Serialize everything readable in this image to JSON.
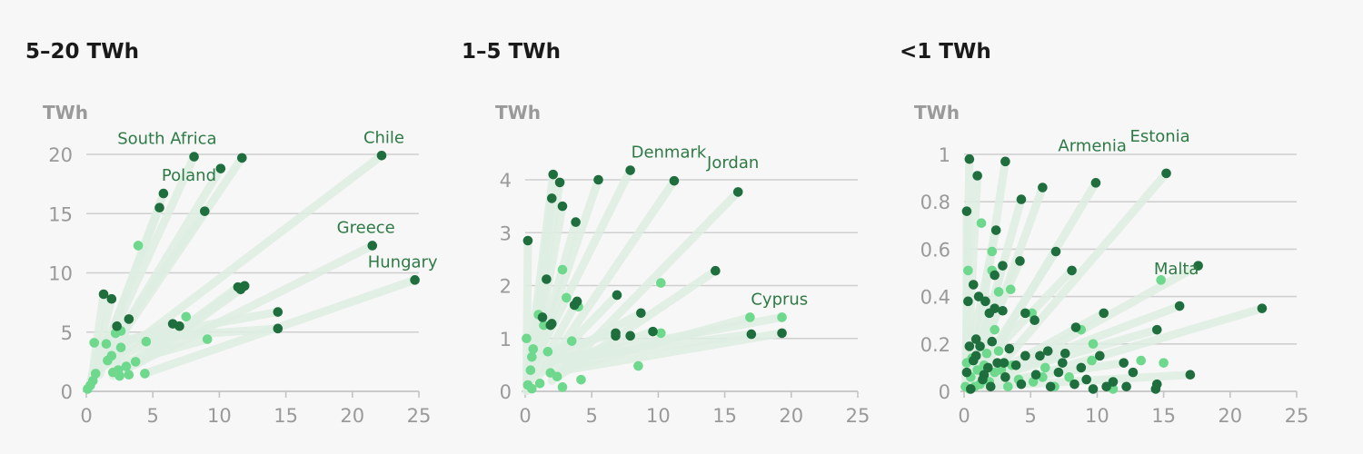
{
  "colors": {
    "grid": "#cfcfcf",
    "axis": "#c4c4c4",
    "link": "#dfeee3",
    "dot_dark": "#1f6e3d",
    "dot_light": "#6ed88c",
    "label": "#2e7a45"
  },
  "chart_data": [
    {
      "type": "scatter",
      "title": "5–20 TWh",
      "ylabel": "TWh",
      "xlabel": "",
      "xlim": [
        0,
        25
      ],
      "ylim": [
        0,
        20
      ],
      "xticks": [
        0,
        5,
        10,
        15,
        20,
        25
      ],
      "yticks": [
        0,
        5,
        10,
        15,
        20
      ],
      "grid": true,
      "links": [
        [
          0.1,
          0.2,
          8.1,
          19.8
        ],
        [
          0.3,
          0.8,
          11.7,
          19.7
        ],
        [
          0.6,
          1.5,
          22.2,
          19.9
        ],
        [
          0.2,
          0.5,
          10.1,
          18.8
        ],
        [
          1.0,
          2.2,
          5.8,
          16.7
        ],
        [
          0.8,
          1.8,
          5.5,
          15.5
        ],
        [
          1.2,
          2.8,
          8.9,
          15.2
        ],
        [
          2.3,
          1.5,
          21.5,
          12.3
        ],
        [
          4.4,
          1.5,
          24.7,
          9.4
        ],
        [
          2.5,
          1.8,
          11.9,
          8.9
        ],
        [
          3.2,
          2.0,
          11.4,
          8.8
        ],
        [
          3.8,
          2.3,
          11.6,
          8.6
        ],
        [
          1.2,
          4.0,
          14.4,
          6.7
        ],
        [
          0.5,
          4.2,
          14.4,
          5.3
        ],
        [
          1.5,
          3.5,
          6.5,
          5.7
        ],
        [
          2.0,
          1.3,
          3.2,
          6.1
        ],
        [
          0.4,
          1.0,
          1.3,
          8.2
        ],
        [
          0.3,
          0.8,
          1.9,
          7.8
        ],
        [
          1.0,
          1.4,
          2.3,
          5.5
        ],
        [
          1.5,
          2.3,
          7.0,
          5.5
        ],
        [
          2.4,
          2.3,
          9.1,
          4.4
        ]
      ],
      "dark_points": [
        [
          8.1,
          19.8
        ],
        [
          11.7,
          19.7
        ],
        [
          22.2,
          19.9
        ],
        [
          10.1,
          18.8
        ],
        [
          5.8,
          16.7
        ],
        [
          5.5,
          15.5
        ],
        [
          8.9,
          15.2
        ],
        [
          21.5,
          12.3
        ],
        [
          24.7,
          9.4
        ],
        [
          11.9,
          8.9
        ],
        [
          11.4,
          8.8
        ],
        [
          11.6,
          8.6
        ],
        [
          1.3,
          8.2
        ],
        [
          1.9,
          7.8
        ],
        [
          14.4,
          6.7
        ],
        [
          3.2,
          6.1
        ],
        [
          6.5,
          5.7
        ],
        [
          7.0,
          5.5
        ],
        [
          2.3,
          5.5
        ],
        [
          14.4,
          5.3
        ]
      ],
      "light_points": [
        [
          3.9,
          12.3
        ],
        [
          7.5,
          6.3
        ],
        [
          9.1,
          4.4
        ],
        [
          0.6,
          4.1
        ],
        [
          1.5,
          4.0
        ],
        [
          2.2,
          4.9
        ],
        [
          4.5,
          4.2
        ],
        [
          2.6,
          3.7
        ],
        [
          1.9,
          3.0
        ],
        [
          3.7,
          2.5
        ],
        [
          3.0,
          2.1
        ],
        [
          2.4,
          1.8
        ],
        [
          3.2,
          1.4
        ],
        [
          4.4,
          1.5
        ],
        [
          2.5,
          1.3
        ],
        [
          0.7,
          1.5
        ],
        [
          0.5,
          0.9
        ],
        [
          0.3,
          0.5
        ],
        [
          0.1,
          0.2
        ],
        [
          2.0,
          1.6
        ],
        [
          2.6,
          5.1
        ],
        [
          1.6,
          2.6
        ]
      ],
      "labels": [
        {
          "text": "South Africa",
          "x": 8.1,
          "y": 19.8,
          "anchor": "end"
        },
        {
          "text": "Poland",
          "x": 5.8,
          "y": 16.7,
          "anchor": "start"
        },
        {
          "text": "Chile",
          "x": 22.2,
          "y": 19.9,
          "anchor": "end"
        },
        {
          "text": "Greece",
          "x": 21.5,
          "y": 12.3,
          "anchor": "end"
        },
        {
          "text": "Hungary",
          "x": 24.7,
          "y": 9.4,
          "anchor": "end"
        }
      ]
    },
    {
      "type": "scatter",
      "title": "1–5 TWh",
      "ylabel": "TWh",
      "xlabel": "",
      "xlim": [
        0,
        25
      ],
      "ylim": [
        0,
        4
      ],
      "xticks": [
        0,
        5,
        10,
        15,
        20,
        25
      ],
      "yticks": [
        0,
        1,
        2,
        3,
        4
      ],
      "grid": true,
      "links": [
        [
          0.1,
          0.1,
          2.1,
          4.1
        ],
        [
          0.2,
          0.3,
          2.6,
          3.95
        ],
        [
          0.3,
          0.2,
          2.0,
          3.65
        ],
        [
          0.5,
          0.3,
          2.8,
          3.5
        ],
        [
          0.4,
          0.2,
          3.8,
          3.2
        ],
        [
          0.2,
          0.1,
          5.5,
          4.0
        ],
        [
          0.6,
          0.5,
          7.9,
          4.18
        ],
        [
          1.5,
          0.4,
          11.2,
          3.98
        ],
        [
          2.5,
          0.3,
          16.0,
          3.77
        ],
        [
          2.0,
          0.2,
          14.3,
          2.28
        ],
        [
          3.0,
          0.4,
          19.3,
          1.1
        ],
        [
          2.8,
          0.6,
          17.0,
          1.08
        ],
        [
          1.0,
          0.3,
          6.9,
          1.82
        ],
        [
          1.5,
          0.5,
          8.7,
          1.48
        ],
        [
          2.0,
          0.5,
          9.6,
          1.13
        ],
        [
          0.1,
          0.0,
          0.2,
          2.85
        ],
        [
          0.4,
          0.4,
          1.6,
          2.12
        ],
        [
          0.8,
          0.3,
          3.9,
          1.7
        ],
        [
          1.2,
          0.7,
          6.8,
          1.1
        ],
        [
          2.2,
          0.6,
          19.3,
          1.4
        ],
        [
          2.5,
          0.4,
          16.9,
          1.4
        ]
      ],
      "dark_points": [
        [
          2.1,
          4.1
        ],
        [
          2.6,
          3.95
        ],
        [
          5.5,
          4.0
        ],
        [
          7.9,
          4.18
        ],
        [
          11.2,
          3.98
        ],
        [
          16.0,
          3.77
        ],
        [
          2.0,
          3.65
        ],
        [
          2.8,
          3.5
        ],
        [
          3.8,
          3.2
        ],
        [
          0.2,
          2.85
        ],
        [
          14.3,
          2.28
        ],
        [
          1.6,
          2.12
        ],
        [
          6.9,
          1.82
        ],
        [
          3.9,
          1.7
        ],
        [
          3.7,
          1.63
        ],
        [
          8.7,
          1.48
        ],
        [
          1.3,
          1.4
        ],
        [
          2.0,
          1.28
        ],
        [
          1.9,
          1.25
        ],
        [
          6.8,
          1.1
        ],
        [
          6.8,
          1.05
        ],
        [
          7.9,
          1.05
        ],
        [
          9.6,
          1.13
        ],
        [
          17.0,
          1.08
        ],
        [
          19.3,
          1.1
        ]
      ],
      "light_points": [
        [
          2.8,
          2.3
        ],
        [
          10.2,
          2.05
        ],
        [
          3.1,
          1.77
        ],
        [
          4.0,
          1.6
        ],
        [
          1.0,
          1.45
        ],
        [
          0.1,
          1.0
        ],
        [
          1.4,
          1.25
        ],
        [
          3.5,
          0.95
        ],
        [
          10.2,
          1.1
        ],
        [
          0.6,
          0.8
        ],
        [
          1.7,
          0.75
        ],
        [
          0.5,
          0.65
        ],
        [
          8.5,
          0.48
        ],
        [
          0.4,
          0.4
        ],
        [
          1.9,
          0.35
        ],
        [
          2.4,
          0.28
        ],
        [
          4.2,
          0.22
        ],
        [
          1.1,
          0.15
        ],
        [
          2.8,
          0.08
        ],
        [
          0.2,
          0.12
        ],
        [
          0.5,
          0.05
        ],
        [
          16.9,
          1.4
        ],
        [
          19.3,
          1.4
        ]
      ],
      "labels": [
        {
          "text": "Denmark",
          "x": 8.1,
          "y": 4.18,
          "anchor": "start"
        },
        {
          "text": "Jordan",
          "x": 13.8,
          "y": 3.98,
          "anchor": "start"
        },
        {
          "text": "Cyprus",
          "x": 17.1,
          "y": 1.4,
          "anchor": "start"
        }
      ]
    },
    {
      "type": "scatter",
      "title": "<1 TWh",
      "ylabel": "TWh",
      "xlabel": "",
      "xlim": [
        0,
        25
      ],
      "ylim": [
        0,
        1
      ],
      "xticks": [
        0,
        5,
        10,
        15,
        20,
        25
      ],
      "yticks": [
        0,
        0.2,
        0.4,
        0.6,
        0.8,
        1
      ],
      "grid": true,
      "links": [
        [
          0.1,
          0.02,
          0.4,
          0.98
        ],
        [
          0.2,
          0.03,
          1.0,
          0.91
        ],
        [
          0.5,
          0.02,
          3.1,
          0.97
        ],
        [
          0.3,
          0.01,
          4.3,
          0.81
        ],
        [
          0.6,
          0.04,
          5.9,
          0.86
        ],
        [
          1.0,
          0.05,
          9.9,
          0.88
        ],
        [
          2.0,
          0.06,
          15.2,
          0.92
        ],
        [
          1.5,
          0.03,
          17.6,
          0.53
        ],
        [
          2.5,
          0.02,
          22.4,
          0.35
        ],
        [
          1.5,
          0.05,
          16.2,
          0.36
        ],
        [
          1.2,
          0.02,
          17.0,
          0.07
        ],
        [
          0.8,
          0.04,
          14.5,
          0.26
        ],
        [
          1.0,
          0.03,
          12.0,
          0.12
        ],
        [
          0.5,
          0.02,
          10.5,
          0.33
        ],
        [
          0.4,
          0.06,
          8.1,
          0.51
        ],
        [
          0.3,
          0.01,
          6.9,
          0.59
        ],
        [
          0.2,
          0.04,
          4.2,
          0.55
        ],
        [
          0.1,
          0.06,
          2.4,
          0.68
        ],
        [
          0.2,
          0.02,
          0.2,
          0.76
        ],
        [
          0.6,
          0.03,
          2.9,
          0.53
        ],
        [
          1.1,
          0.05,
          7.6,
          0.16
        ]
      ],
      "dark_points": [
        [
          0.4,
          0.98
        ],
        [
          1.0,
          0.91
        ],
        [
          3.1,
          0.97
        ],
        [
          4.3,
          0.81
        ],
        [
          5.9,
          0.86
        ],
        [
          9.9,
          0.88
        ],
        [
          15.2,
          0.92
        ],
        [
          0.2,
          0.76
        ],
        [
          2.4,
          0.68
        ],
        [
          6.9,
          0.59
        ],
        [
          4.2,
          0.55
        ],
        [
          17.6,
          0.53
        ],
        [
          2.9,
          0.53
        ],
        [
          8.1,
          0.51
        ],
        [
          2.3,
          0.49
        ],
        [
          0.7,
          0.45
        ],
        [
          1.1,
          0.4
        ],
        [
          1.6,
          0.38
        ],
        [
          0.3,
          0.38
        ],
        [
          2.3,
          0.35
        ],
        [
          2.9,
          0.34
        ],
        [
          1.9,
          0.33
        ],
        [
          4.6,
          0.33
        ],
        [
          10.5,
          0.33
        ],
        [
          16.2,
          0.36
        ],
        [
          22.4,
          0.35
        ],
        [
          5.3,
          0.3
        ],
        [
          8.4,
          0.27
        ],
        [
          14.5,
          0.26
        ],
        [
          0.9,
          0.22
        ],
        [
          2.1,
          0.21
        ],
        [
          0.4,
          0.19
        ],
        [
          1.2,
          0.19
        ],
        [
          3.4,
          0.18
        ],
        [
          6.3,
          0.17
        ],
        [
          7.6,
          0.16
        ],
        [
          10.2,
          0.15
        ],
        [
          4.6,
          0.15
        ],
        [
          5.7,
          0.15
        ],
        [
          0.7,
          0.13
        ],
        [
          2.5,
          0.12
        ],
        [
          3.9,
          0.11
        ],
        [
          8.8,
          0.1
        ],
        [
          12.0,
          0.12
        ],
        [
          12.7,
          0.08
        ],
        [
          0.2,
          0.08
        ],
        [
          1.5,
          0.07
        ],
        [
          3.1,
          0.06
        ],
        [
          5.4,
          0.07
        ],
        [
          7.1,
          0.08
        ],
        [
          9.2,
          0.05
        ],
        [
          11.2,
          0.04
        ],
        [
          14.5,
          0.03
        ],
        [
          17.0,
          0.07
        ],
        [
          12.2,
          0.02
        ],
        [
          4.3,
          0.03
        ],
        [
          6.5,
          0.02
        ],
        [
          2.0,
          0.02
        ],
        [
          0.5,
          0.01
        ],
        [
          10.7,
          0.02
        ],
        [
          8.3,
          0.03
        ],
        [
          1.8,
          0.1
        ],
        [
          3.0,
          0.12
        ],
        [
          0.9,
          0.15
        ],
        [
          1.4,
          0.05
        ],
        [
          7.4,
          0.12
        ],
        [
          14.4,
          0.01
        ],
        [
          9.7,
          0.01
        ]
      ],
      "light_points": [
        [
          1.3,
          0.71
        ],
        [
          0.3,
          0.51
        ],
        [
          2.1,
          0.59
        ],
        [
          2.1,
          0.51
        ],
        [
          3.5,
          0.43
        ],
        [
          2.6,
          0.42
        ],
        [
          5.1,
          0.33
        ],
        [
          2.3,
          0.26
        ],
        [
          8.8,
          0.26
        ],
        [
          9.7,
          0.2
        ],
        [
          0.6,
          0.14
        ],
        [
          1.5,
          0.11
        ],
        [
          2.6,
          0.17
        ],
        [
          3.6,
          0.11
        ],
        [
          5.9,
          0.06
        ],
        [
          0.2,
          0.12
        ],
        [
          1.0,
          0.09
        ],
        [
          2.3,
          0.08
        ],
        [
          4.1,
          0.05
        ],
        [
          6.1,
          0.1
        ],
        [
          7.9,
          0.06
        ],
        [
          9.6,
          0.13
        ],
        [
          13.3,
          0.13
        ],
        [
          15.0,
          0.12
        ],
        [
          14.8,
          0.47
        ],
        [
          0.1,
          0.02
        ],
        [
          0.8,
          0.02
        ],
        [
          1.9,
          0.04
        ],
        [
          3.3,
          0.02
        ],
        [
          5.2,
          0.04
        ],
        [
          6.8,
          0.02
        ],
        [
          11.2,
          0.01
        ],
        [
          1.2,
          0.03
        ],
        [
          2.8,
          0.09
        ],
        [
          0.5,
          0.06
        ],
        [
          1.7,
          0.16
        ],
        [
          0.4,
          0.01
        ]
      ],
      "labels": [
        {
          "text": "Armenia",
          "x": 7.2,
          "y": 0.96,
          "anchor": "start"
        },
        {
          "text": "Estonia",
          "x": 12.6,
          "y": 1.0,
          "anchor": "start"
        },
        {
          "text": "Malta",
          "x": 14.4,
          "y": 0.44,
          "anchor": "start"
        }
      ]
    }
  ]
}
